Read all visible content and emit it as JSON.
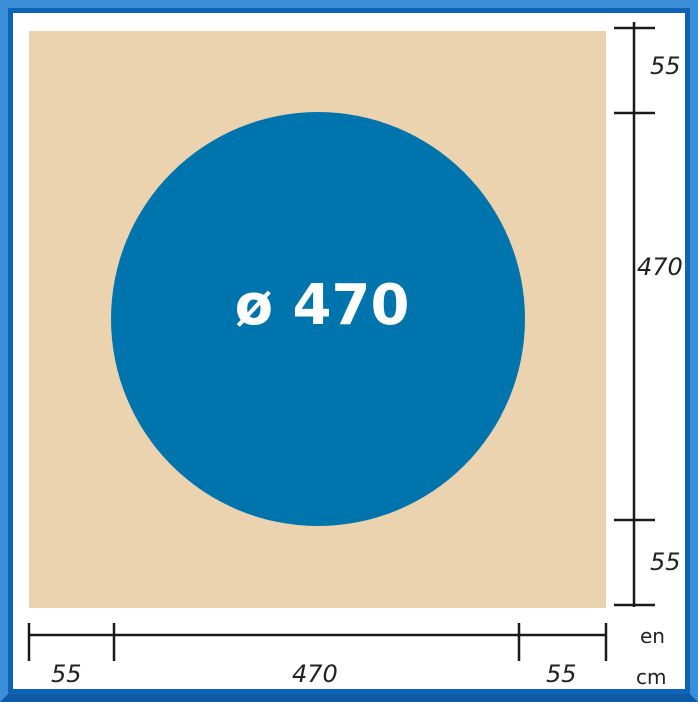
{
  "diagram": {
    "diameter_label": "ø 470",
    "unit_label_line1": "en",
    "unit_label_line2": "cm",
    "horizontal_dimensions": [
      "55",
      "470",
      "55"
    ],
    "vertical_dimensions": [
      "55",
      "470",
      "55"
    ]
  },
  "colors": {
    "frame": "#3a8fd8",
    "frame_dark": "#0d63b5",
    "background_area": "#ecd3b0",
    "circle": "#0074ad",
    "line": "#1a1a1a"
  }
}
